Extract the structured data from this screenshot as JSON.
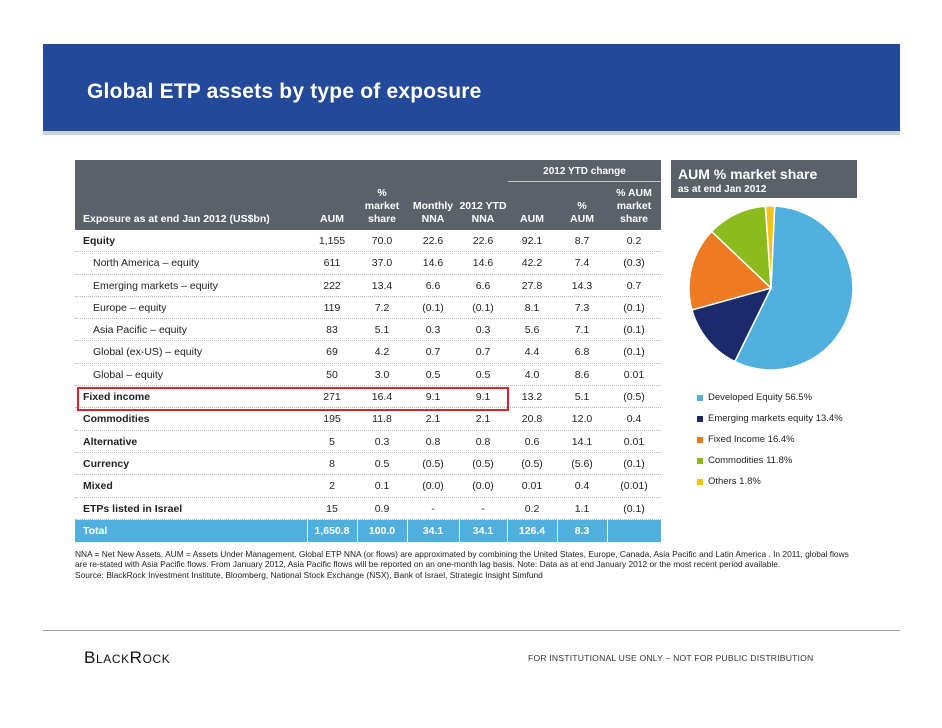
{
  "title": "Global ETP assets by type of exposure",
  "table": {
    "ytd_band": "2012 YTD change",
    "headers": {
      "exposure": "Exposure as at end Jan 2012 (US$bn)",
      "aum": "AUM",
      "market_share": [
        "%",
        "market",
        "share"
      ],
      "monthly_nna": [
        "Monthly",
        "NNA"
      ],
      "ytd_nna": [
        "2012 YTD",
        "NNA"
      ],
      "ytd_aum": "AUM",
      "ytd_pct_aum": [
        "%",
        "AUM"
      ],
      "ytd_pct_share": [
        "% AUM",
        "market",
        "share"
      ]
    },
    "rows": [
      {
        "label": "Equity",
        "style": "bold",
        "values": [
          "1,155",
          "70.0",
          "22.6",
          "22.6",
          "92.1",
          "8.7",
          "0.2"
        ]
      },
      {
        "label": "North America – equity",
        "style": "sub",
        "values": [
          "611",
          "37.0",
          "14.6",
          "14.6",
          "42.2",
          "7.4",
          "(0.3)"
        ]
      },
      {
        "label": "Emerging markets – equity",
        "style": "sub",
        "values": [
          "222",
          "13.4",
          "6.6",
          "6.6",
          "27.8",
          "14.3",
          "0.7"
        ]
      },
      {
        "label": "Europe – equity",
        "style": "sub",
        "values": [
          "119",
          "7.2",
          "(0.1)",
          "(0.1)",
          "8.1",
          "7.3",
          "(0.1)"
        ]
      },
      {
        "label": "Asia Pacific – equity",
        "style": "sub",
        "values": [
          "83",
          "5.1",
          "0.3",
          "0.3",
          "5.6",
          "7.1",
          "(0.1)"
        ]
      },
      {
        "label": "Global (ex-US) – equity",
        "style": "sub",
        "values": [
          "69",
          "4.2",
          "0.7",
          "0.7",
          "4.4",
          "6.8",
          "(0.1)"
        ]
      },
      {
        "label": "Global – equity",
        "style": "sub",
        "values": [
          "50",
          "3.0",
          "0.5",
          "0.5",
          "4.0",
          "8.6",
          "0.01"
        ]
      },
      {
        "label": "Fixed income",
        "style": "bold",
        "values": [
          "271",
          "16.4",
          "9.1",
          "9.1",
          "13.2",
          "5.1",
          "(0.5)"
        ]
      },
      {
        "label": "Commodities",
        "style": "bold",
        "values": [
          "195",
          "11.8",
          "2.1",
          "2.1",
          "20.8",
          "12.0",
          "0.4"
        ]
      },
      {
        "label": "Alternative",
        "style": "bold",
        "values": [
          "5",
          "0.3",
          "0.8",
          "0.8",
          "0.6",
          "14.1",
          "0.01"
        ]
      },
      {
        "label": "Currency",
        "style": "bold",
        "values": [
          "8",
          "0.5",
          "(0.5)",
          "(0.5)",
          "(0.5)",
          "(5.6)",
          "(0.1)"
        ]
      },
      {
        "label": "Mixed",
        "style": "bold",
        "values": [
          "2",
          "0.1",
          "(0.0)",
          "(0.0)",
          "0.01",
          "0.4",
          "(0.01)"
        ]
      },
      {
        "label": "ETPs listed in Israel",
        "style": "bold",
        "values": [
          "15",
          "0.9",
          "-",
          "-",
          "0.2",
          "1.1",
          "(0.1)"
        ]
      },
      {
        "label": "Total",
        "style": "total",
        "values": [
          "1,650.8",
          "100.0",
          "34.1",
          "34.1",
          "126.4",
          "8.3",
          ""
        ]
      }
    ]
  },
  "chart_header": {
    "title": "AUM % market share",
    "subtitle": "as at  end Jan 2012"
  },
  "chart_data": {
    "type": "pie",
    "title": "AUM % market share",
    "subtitle": "as at  end Jan 2012",
    "slices": [
      {
        "label": "Developed Equity 56.5%",
        "value": 56.5,
        "color": "#4fb0df"
      },
      {
        "label": "Emerging markets equity 13.4%",
        "value": 13.4,
        "color": "#1b2a6b"
      },
      {
        "label": "Fixed Income 16.4%",
        "value": 16.4,
        "color": "#ee7a22"
      },
      {
        "label": "Commodities 11.8%",
        "value": 11.8,
        "color": "#8cbb1e"
      },
      {
        "label": "Others 1.8%",
        "value": 1.8,
        "color": "#f4c21c"
      }
    ],
    "legend_position": "bottom"
  },
  "footnote": [
    "NNA = Net New Assets.  AUM = Assets Under Management.  Global ETP NNA (or flows) are approximated by combining the United States, Europe, Canada, Asia Pacific and Latin America . In 2011, global flows",
    "are re-stated with Asia Pacific flows. From January 2012, Asia Pacific flows will be reported on an one-month lag basis.   Note: Data as at end January 2012 or the most recent period available.",
    "Source: BlackRock Investment Institute, Bloomberg, National Stock Exchange (NSX), Bank of Israel, Strategic Insight Simfund"
  ],
  "footer": {
    "logo": "BlackRock",
    "disclaimer": "FOR INSTITUTIONAL  USE ONLY – NOT FOR PUBLIC DISTRIBUTION"
  }
}
